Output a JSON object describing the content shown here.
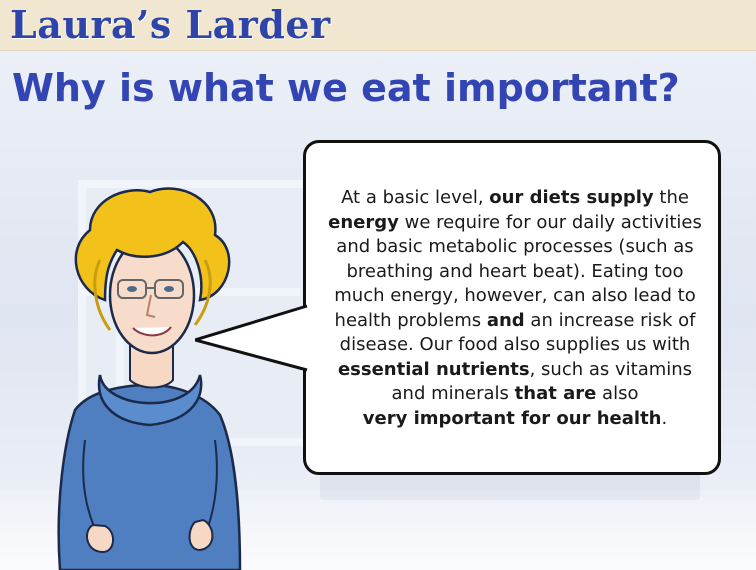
{
  "header": {
    "brand": "Laura’s Larder"
  },
  "page": {
    "title": "Why is what we eat important?"
  },
  "speech": {
    "s1": "At a basic level, ",
    "b1": "our diets supply",
    "s2": " the ",
    "b2": "energy",
    "s3": " we require for our daily activities and basic metabolic processes (such as breathing and heart beat). Eating too much energy, however, can also lead to health problems ",
    "b3": "and",
    "s4": " an increase risk of disease. Our food also supplies us with ",
    "b4": "essential nutrients",
    "s5": ", such as vitamins and minerals ",
    "b5": "that are",
    "s6": " also ",
    "b6": "very important for our health",
    "s7": "."
  },
  "colors": {
    "brand": "#2f44a8",
    "title": "#3245b3",
    "header_bg": "#f1e6cf",
    "hair": "#f2c21b",
    "sweater": "#4f7fc1"
  },
  "icons": {
    "character": "laura-illustration"
  }
}
